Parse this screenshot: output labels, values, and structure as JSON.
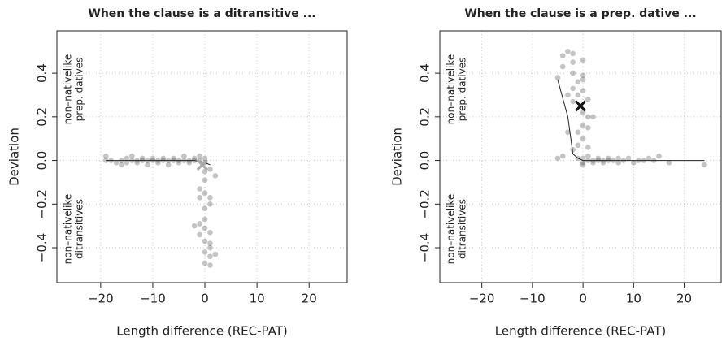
{
  "chart_data": [
    {
      "type": "scatter",
      "title": "When the clause is a ditransitive ...",
      "xlabel": "Length difference (REC-PAT)",
      "ylabel": "Deviation",
      "annotations": [
        [
          "non–nativelike",
          "prep. datives"
        ],
        [
          "non–nativelike",
          "ditransitives"
        ]
      ],
      "xlim": [
        -28.4,
        27.3
      ],
      "ylim": [
        -0.56,
        0.594
      ],
      "xticks": [
        {
          "value": -20,
          "label": "−20"
        },
        {
          "value": -10,
          "label": "−10"
        },
        0,
        10,
        20
      ],
      "yticks": [
        {
          "value": -0.4,
          "label": "−0.4"
        },
        {
          "value": -0.2,
          "label": "−0.2"
        },
        {
          "value": 0,
          "label": "0.0"
        },
        0.2,
        0.4
      ],
      "grid": true,
      "color": "#3c3c3c",
      "marker_color": "#a8a8a8",
      "points": {
        "x": [
          -19,
          -19,
          -18,
          -17,
          -16,
          -16,
          -15,
          -15,
          -14,
          -14,
          -13,
          -13,
          -12,
          -12,
          -11,
          -11,
          -10,
          -10,
          -9,
          -9,
          -8,
          -8,
          -7,
          -7,
          -6,
          -6,
          -5,
          -5,
          -4,
          -4,
          -3,
          -3,
          -2,
          -2,
          -1,
          -1,
          0,
          0,
          0,
          1,
          2,
          0,
          -1,
          0,
          1,
          -1,
          0,
          1,
          0,
          -1,
          0,
          1,
          -1,
          0,
          1,
          0,
          1,
          2,
          0,
          1,
          -2,
          1
        ],
        "y": [
          0.02,
          0,
          0,
          -0.01,
          0,
          -0.02,
          0.01,
          -0.01,
          0,
          0.02,
          0,
          -0.01,
          0.01,
          0,
          0,
          -0.02,
          0.01,
          0,
          0,
          -0.01,
          0.01,
          0,
          0,
          -0.02,
          0.01,
          0,
          0,
          -0.01,
          0.02,
          0,
          0,
          -0.01,
          0.01,
          0,
          0,
          0.02,
          0.01,
          -0.01,
          -0.05,
          -0.04,
          -0.07,
          -0.09,
          -0.13,
          -0.15,
          -0.17,
          -0.17,
          -0.22,
          -0.2,
          -0.27,
          -0.29,
          -0.31,
          -0.33,
          -0.34,
          -0.37,
          -0.4,
          -0.42,
          -0.44,
          -0.43,
          -0.47,
          -0.48,
          -0.3,
          -0.38
        ]
      },
      "line": {
        "x": [
          -19,
          -10,
          -2,
          0,
          1
        ],
        "y": [
          0,
          0,
          0,
          -0.01,
          -0.02
        ]
      },
      "marker": {
        "x": -0.5,
        "y": -0.02
      }
    },
    {
      "type": "scatter",
      "title": "When the clause is a prep. dative ...",
      "xlabel": "Length difference (REC-PAT)",
      "ylabel": "Deviation",
      "annotations": [
        [
          "non–nativelike",
          "prep. datives"
        ],
        [
          "non–nativelike",
          "ditransitives"
        ]
      ],
      "xlim": [
        -28.3,
        27.3
      ],
      "ylim": [
        -0.56,
        0.594
      ],
      "xticks": [
        {
          "value": -20,
          "label": "−20"
        },
        {
          "value": -10,
          "label": "−10"
        },
        0,
        10,
        20
      ],
      "yticks": [
        {
          "value": -0.4,
          "label": "−0.4"
        },
        {
          "value": -0.2,
          "label": "−0.2"
        },
        {
          "value": 0,
          "label": "0.0"
        },
        0.2,
        0.4
      ],
      "grid": true,
      "color": "#3c3c3c",
      "marker_color": "#111111",
      "points": {
        "x": [
          -4,
          -4,
          -5,
          -3,
          -2,
          -2,
          -2,
          -2,
          -3,
          -2,
          -1,
          -1,
          0,
          0,
          0,
          0,
          1,
          1,
          0,
          0,
          1,
          2,
          0,
          1,
          -1,
          -2,
          -3,
          -4,
          -5,
          -1,
          0,
          0,
          1,
          1,
          2,
          2,
          3,
          3,
          4,
          4,
          5,
          5,
          6,
          7,
          7,
          8,
          9,
          10,
          11,
          12,
          13,
          14,
          15,
          17,
          24,
          -1,
          0
        ],
        "y": [
          0.48,
          0.43,
          0.38,
          0.5,
          0.49,
          0.45,
          0.4,
          0.33,
          0.3,
          0.27,
          0.36,
          0.3,
          0.39,
          0.37,
          0.32,
          0.22,
          0.2,
          0.15,
          0.16,
          0.1,
          0.06,
          0.2,
          0.46,
          0.28,
          0.13,
          0.05,
          0.13,
          0.02,
          0.01,
          0.07,
          0.01,
          -0.01,
          0,
          0.02,
          0,
          -0.01,
          0.01,
          0,
          0,
          -0.01,
          0.01,
          0,
          0,
          0.01,
          -0.01,
          0,
          0.01,
          -0.01,
          0,
          0,
          0.01,
          0,
          0.02,
          -0.01,
          -0.02,
          0.01,
          -0.02
        ]
      },
      "line": {
        "x": [
          -5,
          -3,
          -2,
          -1,
          0,
          5,
          10,
          24
        ],
        "y": [
          0.37,
          0.2,
          0.03,
          0.01,
          0,
          0,
          0,
          0
        ]
      },
      "marker": {
        "x": -0.5,
        "y": 0.25
      }
    }
  ]
}
